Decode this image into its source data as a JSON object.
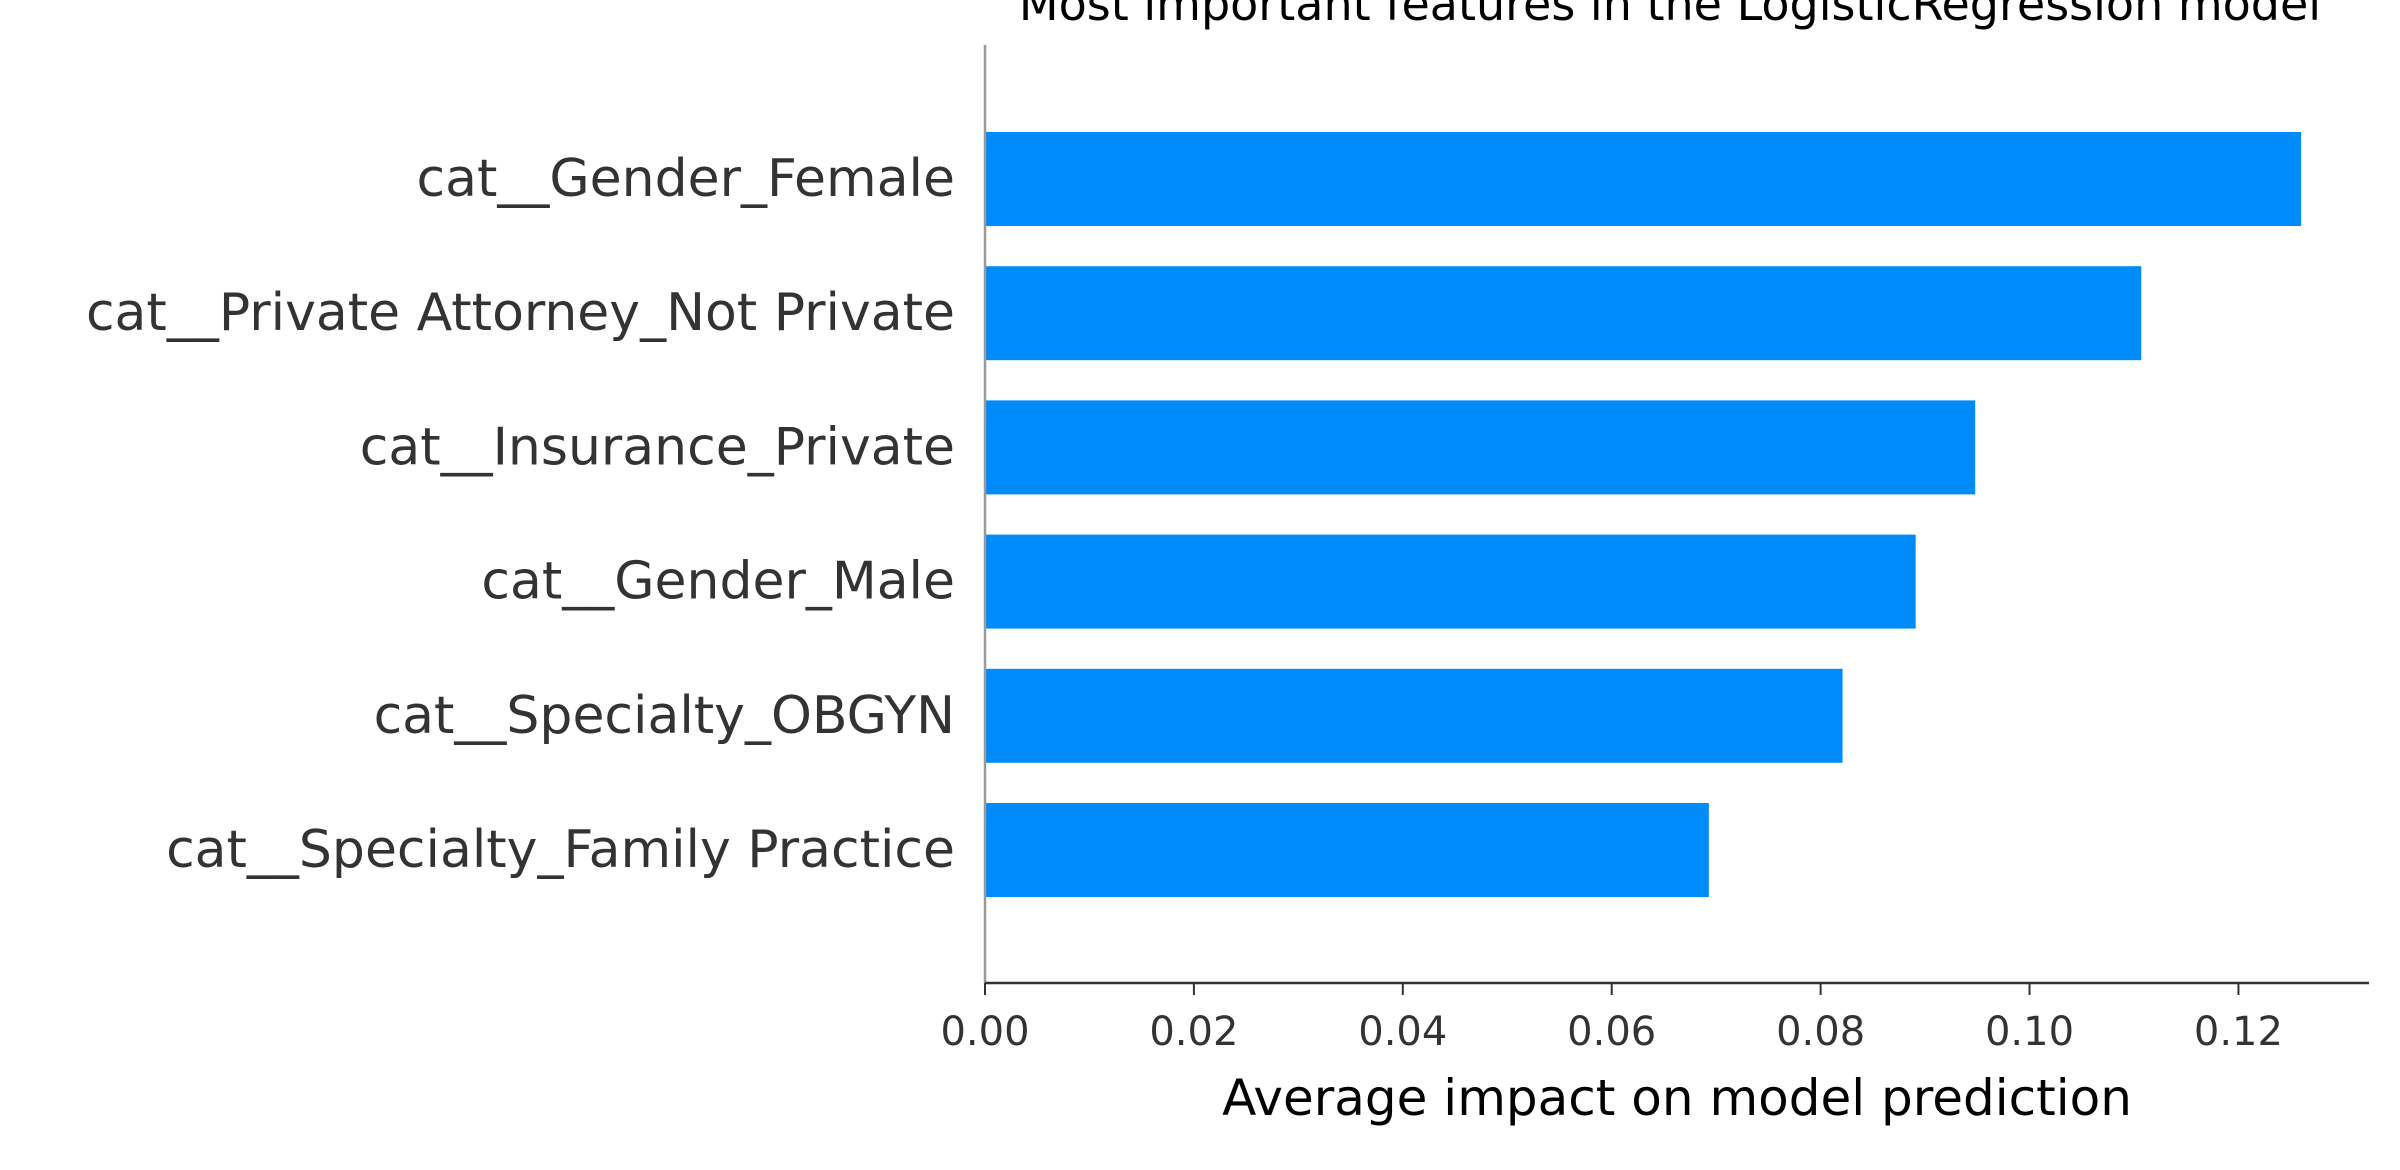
{
  "chart_data": {
    "type": "bar",
    "orientation": "horizontal",
    "title": "Most important features in the LogisticRegression model",
    "xlabel": "Average impact on model prediction",
    "ylabel": "",
    "categories": [
      "cat__Gender_Female",
      "cat__Private Attorney_Not Private",
      "cat__Insurance_Private",
      "cat__Gender_Male",
      "cat__Specialty_OBGYN",
      "cat__Specialty_Family Practice"
    ],
    "values": [
      0.126,
      0.1107,
      0.0948,
      0.0891,
      0.0821,
      0.0693
    ],
    "xlim": [
      0,
      0.1325
    ],
    "x_ticks": [
      0,
      0.02,
      0.04,
      0.06,
      0.08,
      0.1,
      0.12
    ],
    "x_tick_labels": [
      "0.00",
      "0.02",
      "0.04",
      "0.06",
      "0.08",
      "0.10",
      "0.12"
    ],
    "bar_color": "#008bfb",
    "grid": false,
    "legend": "none"
  }
}
